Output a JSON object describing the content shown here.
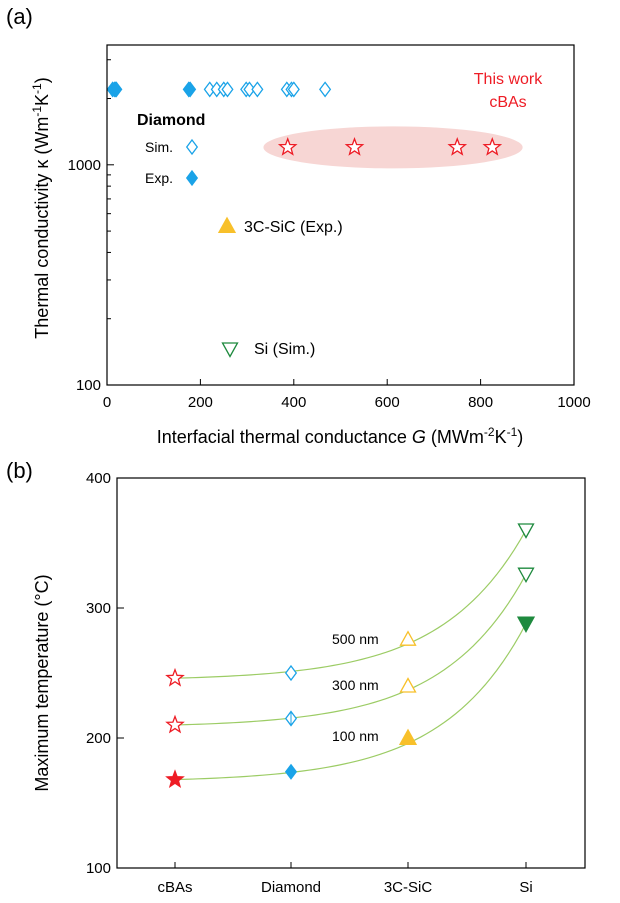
{
  "figure": {
    "panel_a_label": "(a)",
    "panel_b_label": "(b)"
  },
  "colors": {
    "diamond": "#1aa3e8",
    "cbas": "#ee1c25",
    "sic": "#f8c02a",
    "si": "#1e8a3e",
    "highlight": "#f7d6d4",
    "curve": "#9ccc65"
  },
  "chart_data": [
    {
      "type": "scatter",
      "panel": "(a)",
      "title": "",
      "xlabel_parts": [
        "Interfacial thermal conductance ",
        "G",
        " (MWm",
        "-2",
        "K",
        "-1",
        ")"
      ],
      "ylabel_parts": [
        "Thermal conductivity κ (Wm",
        "-1",
        "K",
        "-1",
        ")"
      ],
      "xlim": [
        0,
        1000
      ],
      "ylim": [
        100,
        3500
      ],
      "yscale": "log",
      "xticks": [
        0,
        200,
        400,
        600,
        800,
        1000
      ],
      "xtick_labels": [
        "0",
        "200",
        "400",
        "600",
        "800",
        "1000"
      ],
      "yticks": [
        100,
        1000
      ],
      "ytick_labels": [
        "100",
        "1000"
      ],
      "series": [
        {
          "name": "Sim.",
          "group": "Diamond",
          "marker": "diamond-open",
          "x": [
            18,
            220,
            235,
            250,
            258,
            298,
            305,
            322,
            385,
            395,
            400,
            467
          ],
          "y": [
            2200,
            2200,
            2200,
            2200,
            2200,
            2200,
            2200,
            2200,
            2200,
            2200,
            2200,
            2200
          ]
        },
        {
          "name": "Exp.",
          "group": "Diamond",
          "marker": "diamond-filled",
          "x": [
            12,
            16,
            20,
            175,
            178
          ],
          "y": [
            2200,
            2200,
            2200,
            2200,
            2200
          ]
        },
        {
          "name": "3C-SiC (Exp.)",
          "marker": "triangle-up-filled",
          "x": [],
          "y": []
        },
        {
          "name": "Si (Sim.)",
          "marker": "triangle-down-open",
          "x": [],
          "y": []
        },
        {
          "name": "This work cBAs",
          "marker": "star-open",
          "x": [
            387,
            530,
            750,
            825
          ],
          "y": [
            1200,
            1200,
            1200,
            1200
          ]
        }
      ],
      "legend": {
        "diamond_title": "Diamond",
        "diamond_sim": "Sim.",
        "diamond_exp": "Exp.",
        "sic": "3C-SiC (Exp.)",
        "si": "Si (Sim.)",
        "cbas_line1": "This work",
        "cbas_line2": "cBAs"
      },
      "legend_marker_positions_note": "",
      "highlight_ellipse": {
        "x_range": [
          335,
          890
        ],
        "y_center": 1200
      }
    },
    {
      "type": "scatter",
      "panel": "(b)",
      "title": "",
      "xlabel": "",
      "ylabel": "Maximum temperature (°C)",
      "ylim": [
        100,
        400
      ],
      "yticks": [
        100,
        200,
        300,
        400
      ],
      "ytick_labels": [
        "100",
        "200",
        "300",
        "400"
      ],
      "categories": [
        "cBAs",
        "Diamond",
        "3C-SiC",
        "Si"
      ],
      "series": [
        {
          "name": "500 nm",
          "values": [
            246,
            250,
            276,
            360
          ]
        },
        {
          "name": "300 nm",
          "values": [
            210,
            215,
            240,
            326
          ]
        },
        {
          "name": "100 nm",
          "values": [
            168,
            174,
            200,
            288
          ]
        }
      ],
      "series_labels": [
        "500 nm",
        "300 nm",
        "100 nm"
      ]
    }
  ]
}
